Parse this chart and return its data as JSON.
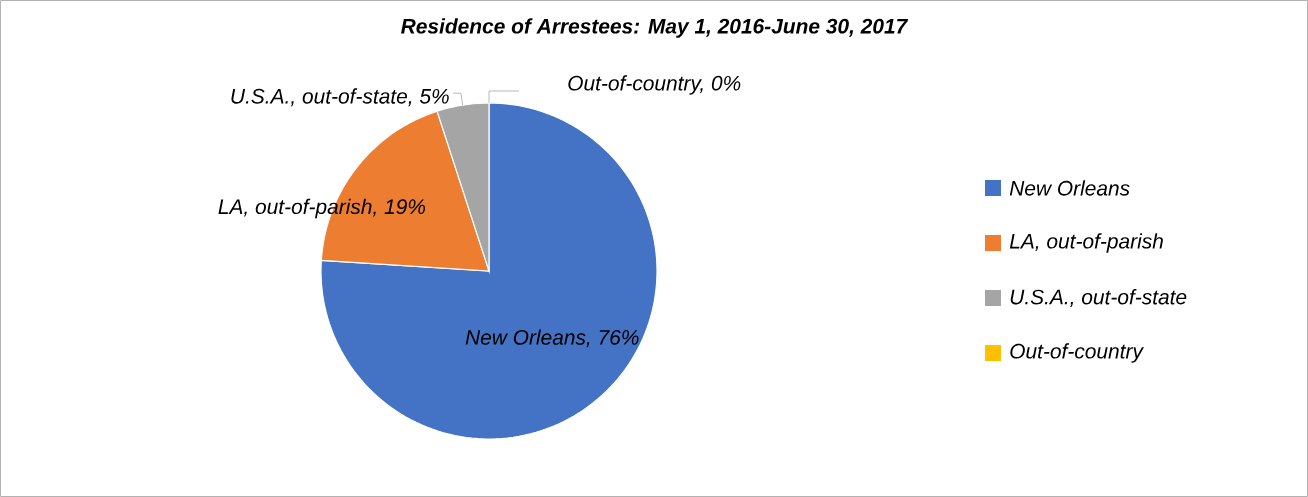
{
  "chart_data": {
    "type": "pie",
    "title": "Residence of Arrestees: May 1, 2016-June 30, 2017",
    "categories": [
      "New Orleans",
      "LA, out-of-parish",
      "U.S.A., out-of-state",
      "Out-of-country"
    ],
    "values": [
      76,
      19,
      5,
      0
    ],
    "colors": [
      "#4472c4",
      "#ed7d31",
      "#a5a5a5",
      "#ffc000"
    ],
    "value_labels": [
      "New Orleans, 76%",
      "LA, out-of-parish, 19%",
      "U.S.A., out-of-state, 5%",
      "Out-of-country, 0%"
    ],
    "legend": "right"
  }
}
